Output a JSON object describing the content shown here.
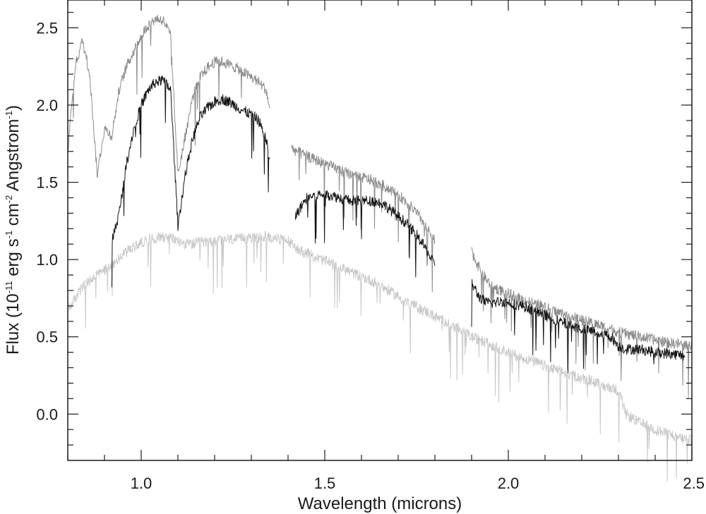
{
  "chart_data": {
    "type": "line",
    "title": "",
    "xlabel": "Wavelength (microns)",
    "ylabel": {
      "parts": [
        "Flux (10",
        "-11",
        " erg s",
        "-1",
        " cm",
        "-2",
        " Angstrom",
        "-1",
        ")"
      ]
    },
    "xlim": [
      0.8,
      2.5
    ],
    "ylim": [
      -0.3,
      2.68
    ],
    "x_ticks": [
      1.0,
      1.5,
      2.0,
      2.5
    ],
    "x_tick_labels": [
      "1.0",
      "1.5",
      "2.0",
      "2.5"
    ],
    "y_ticks": [
      0.0,
      0.5,
      1.0,
      1.5,
      2.0,
      2.5
    ],
    "y_tick_labels": [
      "0.0",
      "0.5",
      "1.0",
      "1.5",
      "2.0",
      "2.5"
    ],
    "x_minor_step": 0.1,
    "y_minor_step": 0.1,
    "grid": false,
    "legend": "none",
    "series": [
      {
        "color": "#c9c9c9",
        "segments": [
          {
            "x": [
              0.8,
              0.82,
              0.84,
              0.86,
              0.88,
              0.9,
              0.92,
              0.94,
              0.96,
              0.98,
              1.0,
              1.02,
              1.04,
              1.06,
              1.08,
              1.1,
              1.12,
              1.14,
              1.16,
              1.18,
              1.2,
              1.22,
              1.24,
              1.26,
              1.28,
              1.3,
              1.32,
              1.34,
              1.36,
              1.38,
              1.4,
              1.42,
              1.44,
              1.46,
              1.48,
              1.5,
              1.52,
              1.54,
              1.56,
              1.58,
              1.6,
              1.62,
              1.64,
              1.66,
              1.68,
              1.7,
              1.72,
              1.74,
              1.76,
              1.78,
              1.8,
              1.82,
              1.84,
              1.86,
              1.88,
              1.9,
              1.92,
              1.94,
              1.96,
              1.98,
              2.0,
              2.02,
              2.04,
              2.06,
              2.08,
              2.1,
              2.12,
              2.14,
              2.16,
              2.18,
              2.2,
              2.22,
              2.24,
              2.26,
              2.28,
              2.3,
              2.32,
              2.34,
              2.36,
              2.38,
              2.4,
              2.42,
              2.44,
              2.46,
              2.48,
              2.5
            ],
            "y": [
              0.67,
              0.75,
              0.82,
              0.86,
              0.9,
              0.93,
              0.97,
              1.01,
              1.05,
              1.08,
              1.11,
              1.13,
              1.14,
              1.15,
              1.14,
              1.12,
              1.1,
              1.1,
              1.11,
              1.12,
              1.12,
              1.13,
              1.13,
              1.13,
              1.14,
              1.14,
              1.14,
              1.15,
              1.14,
              1.13,
              1.12,
              1.08,
              1.05,
              1.03,
              1.01,
              0.99,
              0.97,
              0.95,
              0.93,
              0.91,
              0.89,
              0.87,
              0.85,
              0.82,
              0.79,
              0.76,
              0.73,
              0.71,
              0.68,
              0.66,
              0.63,
              0.61,
              0.58,
              0.56,
              0.53,
              0.5,
              0.48,
              0.46,
              0.44,
              0.42,
              0.4,
              0.38,
              0.36,
              0.35,
              0.33,
              0.31,
              0.29,
              0.28,
              0.26,
              0.25,
              0.23,
              0.22,
              0.2,
              0.18,
              0.17,
              0.15,
              0.0,
              -0.03,
              -0.06,
              -0.08,
              -0.1,
              -0.12,
              -0.13,
              -0.15,
              -0.16,
              -0.17
            ]
          }
        ]
      },
      {
        "color": "#8c8c8c",
        "segments": [
          {
            "x": [
              0.8,
              0.82,
              0.84,
              0.86,
              0.88,
              0.9,
              0.92,
              0.94,
              0.96,
              0.98,
              1.0,
              1.02,
              1.04,
              1.06,
              1.08,
              1.1,
              1.12,
              1.14,
              1.16,
              1.18,
              1.2,
              1.22,
              1.24,
              1.26,
              1.28,
              1.3,
              1.32,
              1.34,
              1.35
            ],
            "y": [
              1.7,
              2.25,
              2.42,
              2.2,
              1.55,
              1.85,
              1.8,
              2.1,
              2.25,
              2.35,
              2.45,
              2.52,
              2.56,
              2.55,
              2.45,
              1.55,
              1.8,
              2.05,
              2.18,
              2.24,
              2.28,
              2.28,
              2.26,
              2.24,
              2.21,
              2.18,
              2.15,
              2.1,
              1.98
            ]
          },
          {
            "x": [
              1.41,
              1.44,
              1.47,
              1.5,
              1.53,
              1.56,
              1.59,
              1.62,
              1.65,
              1.68,
              1.71,
              1.74,
              1.77,
              1.8
            ],
            "y": [
              1.72,
              1.68,
              1.65,
              1.62,
              1.59,
              1.56,
              1.54,
              1.52,
              1.49,
              1.45,
              1.4,
              1.33,
              1.24,
              1.12
            ]
          },
          {
            "x": [
              1.9,
              1.92,
              1.94,
              1.96,
              1.98,
              2.0,
              2.04,
              2.08,
              2.12,
              2.16,
              2.2,
              2.24,
              2.28,
              2.3,
              2.32,
              2.36,
              2.4,
              2.44,
              2.48,
              2.5
            ],
            "y": [
              1.05,
              0.95,
              0.87,
              0.82,
              0.8,
              0.78,
              0.74,
              0.71,
              0.67,
              0.64,
              0.61,
              0.58,
              0.55,
              0.53,
              0.52,
              0.5,
              0.48,
              0.46,
              0.45,
              0.44
            ]
          }
        ]
      },
      {
        "color": "#141414",
        "segments": [
          {
            "x": [
              0.92,
              0.94,
              0.96,
              0.98,
              1.0,
              1.02,
              1.04,
              1.06,
              1.08,
              1.1,
              1.12,
              1.14,
              1.16,
              1.18,
              1.2,
              1.22,
              1.24,
              1.26,
              1.28,
              1.3,
              1.32,
              1.34,
              1.35
            ],
            "y": [
              1.12,
              1.3,
              1.62,
              1.85,
              2.0,
              2.1,
              2.15,
              2.16,
              2.1,
              1.22,
              1.55,
              1.78,
              1.92,
              1.98,
              2.02,
              2.04,
              2.02,
              1.99,
              1.96,
              1.94,
              1.9,
              1.78,
              1.65
            ]
          },
          {
            "x": [
              1.42,
              1.45,
              1.48,
              1.51,
              1.54,
              1.57,
              1.6,
              1.63,
              1.66,
              1.69,
              1.72,
              1.75,
              1.78,
              1.8
            ],
            "y": [
              1.28,
              1.4,
              1.42,
              1.42,
              1.4,
              1.38,
              1.38,
              1.38,
              1.36,
              1.3,
              1.24,
              1.16,
              1.05,
              0.96
            ]
          },
          {
            "x": [
              1.9,
              1.92,
              1.94,
              1.96,
              1.98,
              2.0,
              2.04,
              2.08,
              2.12,
              2.16,
              2.2,
              2.24,
              2.28,
              2.3,
              2.32,
              2.36,
              2.4,
              2.44,
              2.48
            ],
            "y": [
              0.85,
              0.76,
              0.72,
              0.72,
              0.73,
              0.72,
              0.7,
              0.66,
              0.62,
              0.58,
              0.55,
              0.53,
              0.5,
              0.44,
              0.42,
              0.42,
              0.4,
              0.39,
              0.38
            ]
          }
        ]
      }
    ]
  }
}
